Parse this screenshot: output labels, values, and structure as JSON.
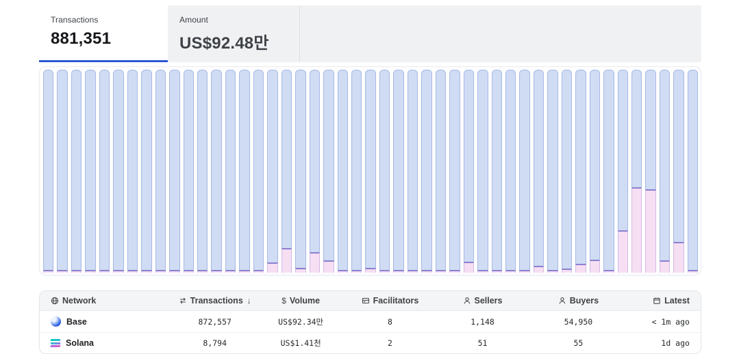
{
  "theme": {
    "accent_blue": "#2b59d4",
    "bar_blue_fill": "#cfdcf3",
    "bar_blue_border": "#a6b9e6",
    "bar_pink_fill": "#f6def3",
    "bar_pink_border": "#8b80cf",
    "tabstrip_bg": "#f0f1f3",
    "table_header_bg": "#f4f5f6"
  },
  "tabs": [
    {
      "label": "Transactions",
      "value": "881,351",
      "active": true
    },
    {
      "label": "Amount",
      "value": "US$92.48만",
      "active": false
    }
  ],
  "chart_data": {
    "type": "bar",
    "stacked": true,
    "normalized_full_height": true,
    "bar_count": 47,
    "x_axis": "time buckets (unlabeled)",
    "y_axis": "share of transactions (unlabeled)",
    "grid": false,
    "legend": "none",
    "series": [
      {
        "name": "blue-segment (Base)",
        "color": "#cfdcf3"
      },
      {
        "name": "pink-segment (Solana)",
        "color": "#f6def3"
      }
    ],
    "pink_pct": [
      1.5,
      1.5,
      1.5,
      1.5,
      1.5,
      1.5,
      1.5,
      1.5,
      1.5,
      1.5,
      1.5,
      1.5,
      1.5,
      1.5,
      1.5,
      1.5,
      5,
      12,
      2.5,
      10,
      6,
      1.5,
      1.5,
      2.5,
      1.5,
      1.5,
      1.5,
      1.5,
      1.5,
      1.5,
      5.5,
      1.5,
      1.5,
      1.5,
      1.5,
      3.5,
      1.5,
      2,
      4.5,
      6.5,
      1.5,
      21,
      42,
      41,
      6,
      15,
      1.5
    ]
  },
  "table": {
    "columns": [
      {
        "label": "Network",
        "icon": "globe-icon",
        "sort": ""
      },
      {
        "label": "Transactions",
        "icon": "swap-icon",
        "sort": "↓"
      },
      {
        "label": "Volume",
        "icon": "dollar-icon",
        "sort": ""
      },
      {
        "label": "Facilitators",
        "icon": "card-icon",
        "sort": ""
      },
      {
        "label": "Sellers",
        "icon": "person-icon",
        "sort": ""
      },
      {
        "label": "Buyers",
        "icon": "person-icon",
        "sort": ""
      },
      {
        "label": "Latest",
        "icon": "calendar-icon",
        "sort": ""
      }
    ],
    "rows": [
      {
        "network": "Base",
        "icon": "base-icon",
        "transactions": "872,557",
        "volume": "US$92.34만",
        "facilitators": "8",
        "sellers": "1,148",
        "buyers": "54,950",
        "latest": "< 1m ago"
      },
      {
        "network": "Solana",
        "icon": "solana-icon",
        "transactions": "8,794",
        "volume": "US$1.41천",
        "facilitators": "2",
        "sellers": "51",
        "buyers": "55",
        "latest": "1d ago"
      }
    ]
  }
}
